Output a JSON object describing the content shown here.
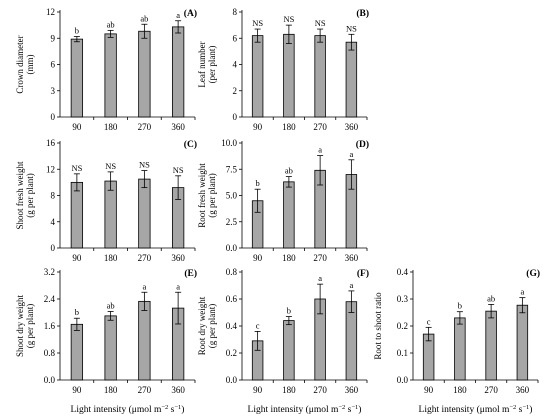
{
  "common": {
    "categories": [
      "90",
      "180",
      "270",
      "360"
    ],
    "xlabel_main": "Light intensity (μmol m",
    "xlabel_sup1": "−2",
    "xlabel_mid": " s",
    "xlabel_sup2": "−1",
    "xlabel_end": ")",
    "bar_color": "#a6a6a6"
  },
  "chart_data": [
    {
      "type": "bar",
      "panel": "(A)",
      "ylabel_line1": "Crown diameter",
      "ylabel_line2": "(mm)",
      "categories": [
        "90",
        "180",
        "270",
        "360"
      ],
      "values": [
        8.9,
        9.5,
        9.8,
        10.3
      ],
      "errors": [
        0.3,
        0.4,
        0.8,
        0.7
      ],
      "significance": [
        "b",
        "ab",
        "ab",
        "a"
      ],
      "ylim": [
        0,
        12
      ],
      "yticks": [
        "0",
        "3",
        "6",
        "9",
        "12"
      ],
      "show_xlabel": false
    },
    {
      "type": "bar",
      "panel": "(B)",
      "ylabel_line1": "Leaf number",
      "ylabel_line2": "(per plant)",
      "categories": [
        "90",
        "180",
        "270",
        "360"
      ],
      "values": [
        6.2,
        6.3,
        6.2,
        5.7
      ],
      "errors": [
        0.5,
        0.7,
        0.5,
        0.6
      ],
      "significance": [
        "NS",
        "NS",
        "NS",
        "NS"
      ],
      "ylim": [
        0,
        8
      ],
      "yticks": [
        "0",
        "2",
        "4",
        "6",
        "8"
      ],
      "show_xlabel": false
    },
    {
      "type": "bar",
      "panel": "(C)",
      "ylabel_line1": "Shoot fresh weight",
      "ylabel_line2": "(g per plant)",
      "categories": [
        "90",
        "180",
        "270",
        "360"
      ],
      "values": [
        10.0,
        10.2,
        10.5,
        9.2
      ],
      "errors": [
        1.3,
        1.4,
        1.3,
        1.8
      ],
      "significance": [
        "NS",
        "NS",
        "NS",
        "NS"
      ],
      "ylim": [
        0,
        16
      ],
      "yticks": [
        "0",
        "4",
        "8",
        "12",
        "16"
      ],
      "show_xlabel": false
    },
    {
      "type": "bar",
      "panel": "(D)",
      "ylabel_line1": "Root fresh weight",
      "ylabel_line2": "(g per plant)",
      "categories": [
        "90",
        "180",
        "270",
        "360"
      ],
      "values": [
        4.5,
        6.3,
        7.4,
        7.0
      ],
      "errors": [
        1.1,
        0.5,
        1.4,
        1.4
      ],
      "significance": [
        "b",
        "ab",
        "a",
        "a"
      ],
      "ylim": [
        0,
        10
      ],
      "yticks": [
        "0.0",
        "2.5",
        "5.0",
        "7.5",
        "10.0"
      ],
      "show_xlabel": false
    },
    {
      "type": "bar",
      "panel": "(E)",
      "ylabel_line1": "Shoot dry weight",
      "ylabel_line2": "(g per plant)",
      "categories": [
        "90",
        "180",
        "270",
        "360"
      ],
      "values": [
        1.65,
        1.9,
        2.33,
        2.13
      ],
      "errors": [
        0.18,
        0.13,
        0.27,
        0.47
      ],
      "significance": [
        "b",
        "ab",
        "a",
        "a"
      ],
      "ylim": [
        0,
        3.2
      ],
      "yticks": [
        "0.0",
        "0.8",
        "1.6",
        "2.4",
        "3.2"
      ],
      "show_xlabel": true
    },
    {
      "type": "bar",
      "panel": "(F)",
      "ylabel_line1": "Root dry weight",
      "ylabel_line2": "(g per plant)",
      "categories": [
        "90",
        "180",
        "270",
        "360"
      ],
      "values": [
        0.29,
        0.44,
        0.6,
        0.58
      ],
      "errors": [
        0.07,
        0.03,
        0.11,
        0.08
      ],
      "significance": [
        "c",
        "b",
        "a",
        "a"
      ],
      "ylim": [
        0,
        0.8
      ],
      "yticks": [
        "0.0",
        "0.2",
        "0.4",
        "0.6",
        "0.8"
      ],
      "show_xlabel": true
    },
    {
      "type": "bar",
      "panel": "(G)",
      "ylabel_line1": "Root to shoot ratio",
      "ylabel_line2": "",
      "categories": [
        "90",
        "180",
        "270",
        "360"
      ],
      "values": [
        0.17,
        0.23,
        0.255,
        0.277
      ],
      "errors": [
        0.025,
        0.023,
        0.025,
        0.028
      ],
      "significance": [
        "c",
        "b",
        "ab",
        "a"
      ],
      "ylim": [
        0,
        0.4
      ],
      "yticks": [
        "0.0",
        "0.1",
        "0.2",
        "0.3",
        "0.4"
      ],
      "show_xlabel": true
    }
  ]
}
